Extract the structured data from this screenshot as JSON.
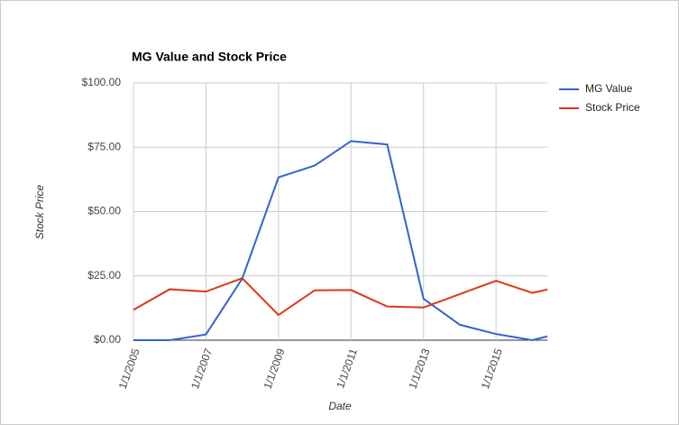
{
  "chart_data": {
    "type": "line",
    "title": "MG Value and Stock Price",
    "x_label": "Date",
    "y_label": "Stock Price",
    "x": [
      "1/1/2005",
      "1/1/2006",
      "1/1/2007",
      "1/1/2008",
      "1/1/2009",
      "1/1/2010",
      "1/1/2011",
      "1/1/2012",
      "1/1/2013",
      "1/1/2014",
      "1/1/2015",
      "1/1/2016",
      "6/1/2016"
    ],
    "series": [
      {
        "name": "MG Value",
        "color": "#3366cc",
        "values": [
          0,
          0,
          2.2,
          23.9,
          63.3,
          67.9,
          77.4,
          76.1,
          16.1,
          6,
          2.4,
          0,
          1.5
        ]
      },
      {
        "name": "Stock Price",
        "color": "#dc3912",
        "values": [
          11.8,
          19.8,
          18.9,
          24.1,
          9.8,
          19.4,
          19.5,
          13.1,
          12.7,
          17.9,
          23.1,
          18.4,
          19.7
        ]
      }
    ],
    "xlim": [
      "1/1/2005",
      "6/1/2016"
    ],
    "xticks": [
      "1/1/2005",
      "1/1/2007",
      "1/1/2009",
      "1/1/2011",
      "1/1/2013",
      "1/1/2015"
    ],
    "ylim": [
      0,
      100
    ],
    "yticks": [
      {
        "value": 0,
        "label": "$0.00"
      },
      {
        "value": 25,
        "label": "$25.00"
      },
      {
        "value": 50,
        "label": "$50.00"
      },
      {
        "value": 75,
        "label": "$75.00"
      },
      {
        "value": 100,
        "label": "$100.00"
      }
    ],
    "grid": true,
    "legend": "right"
  }
}
